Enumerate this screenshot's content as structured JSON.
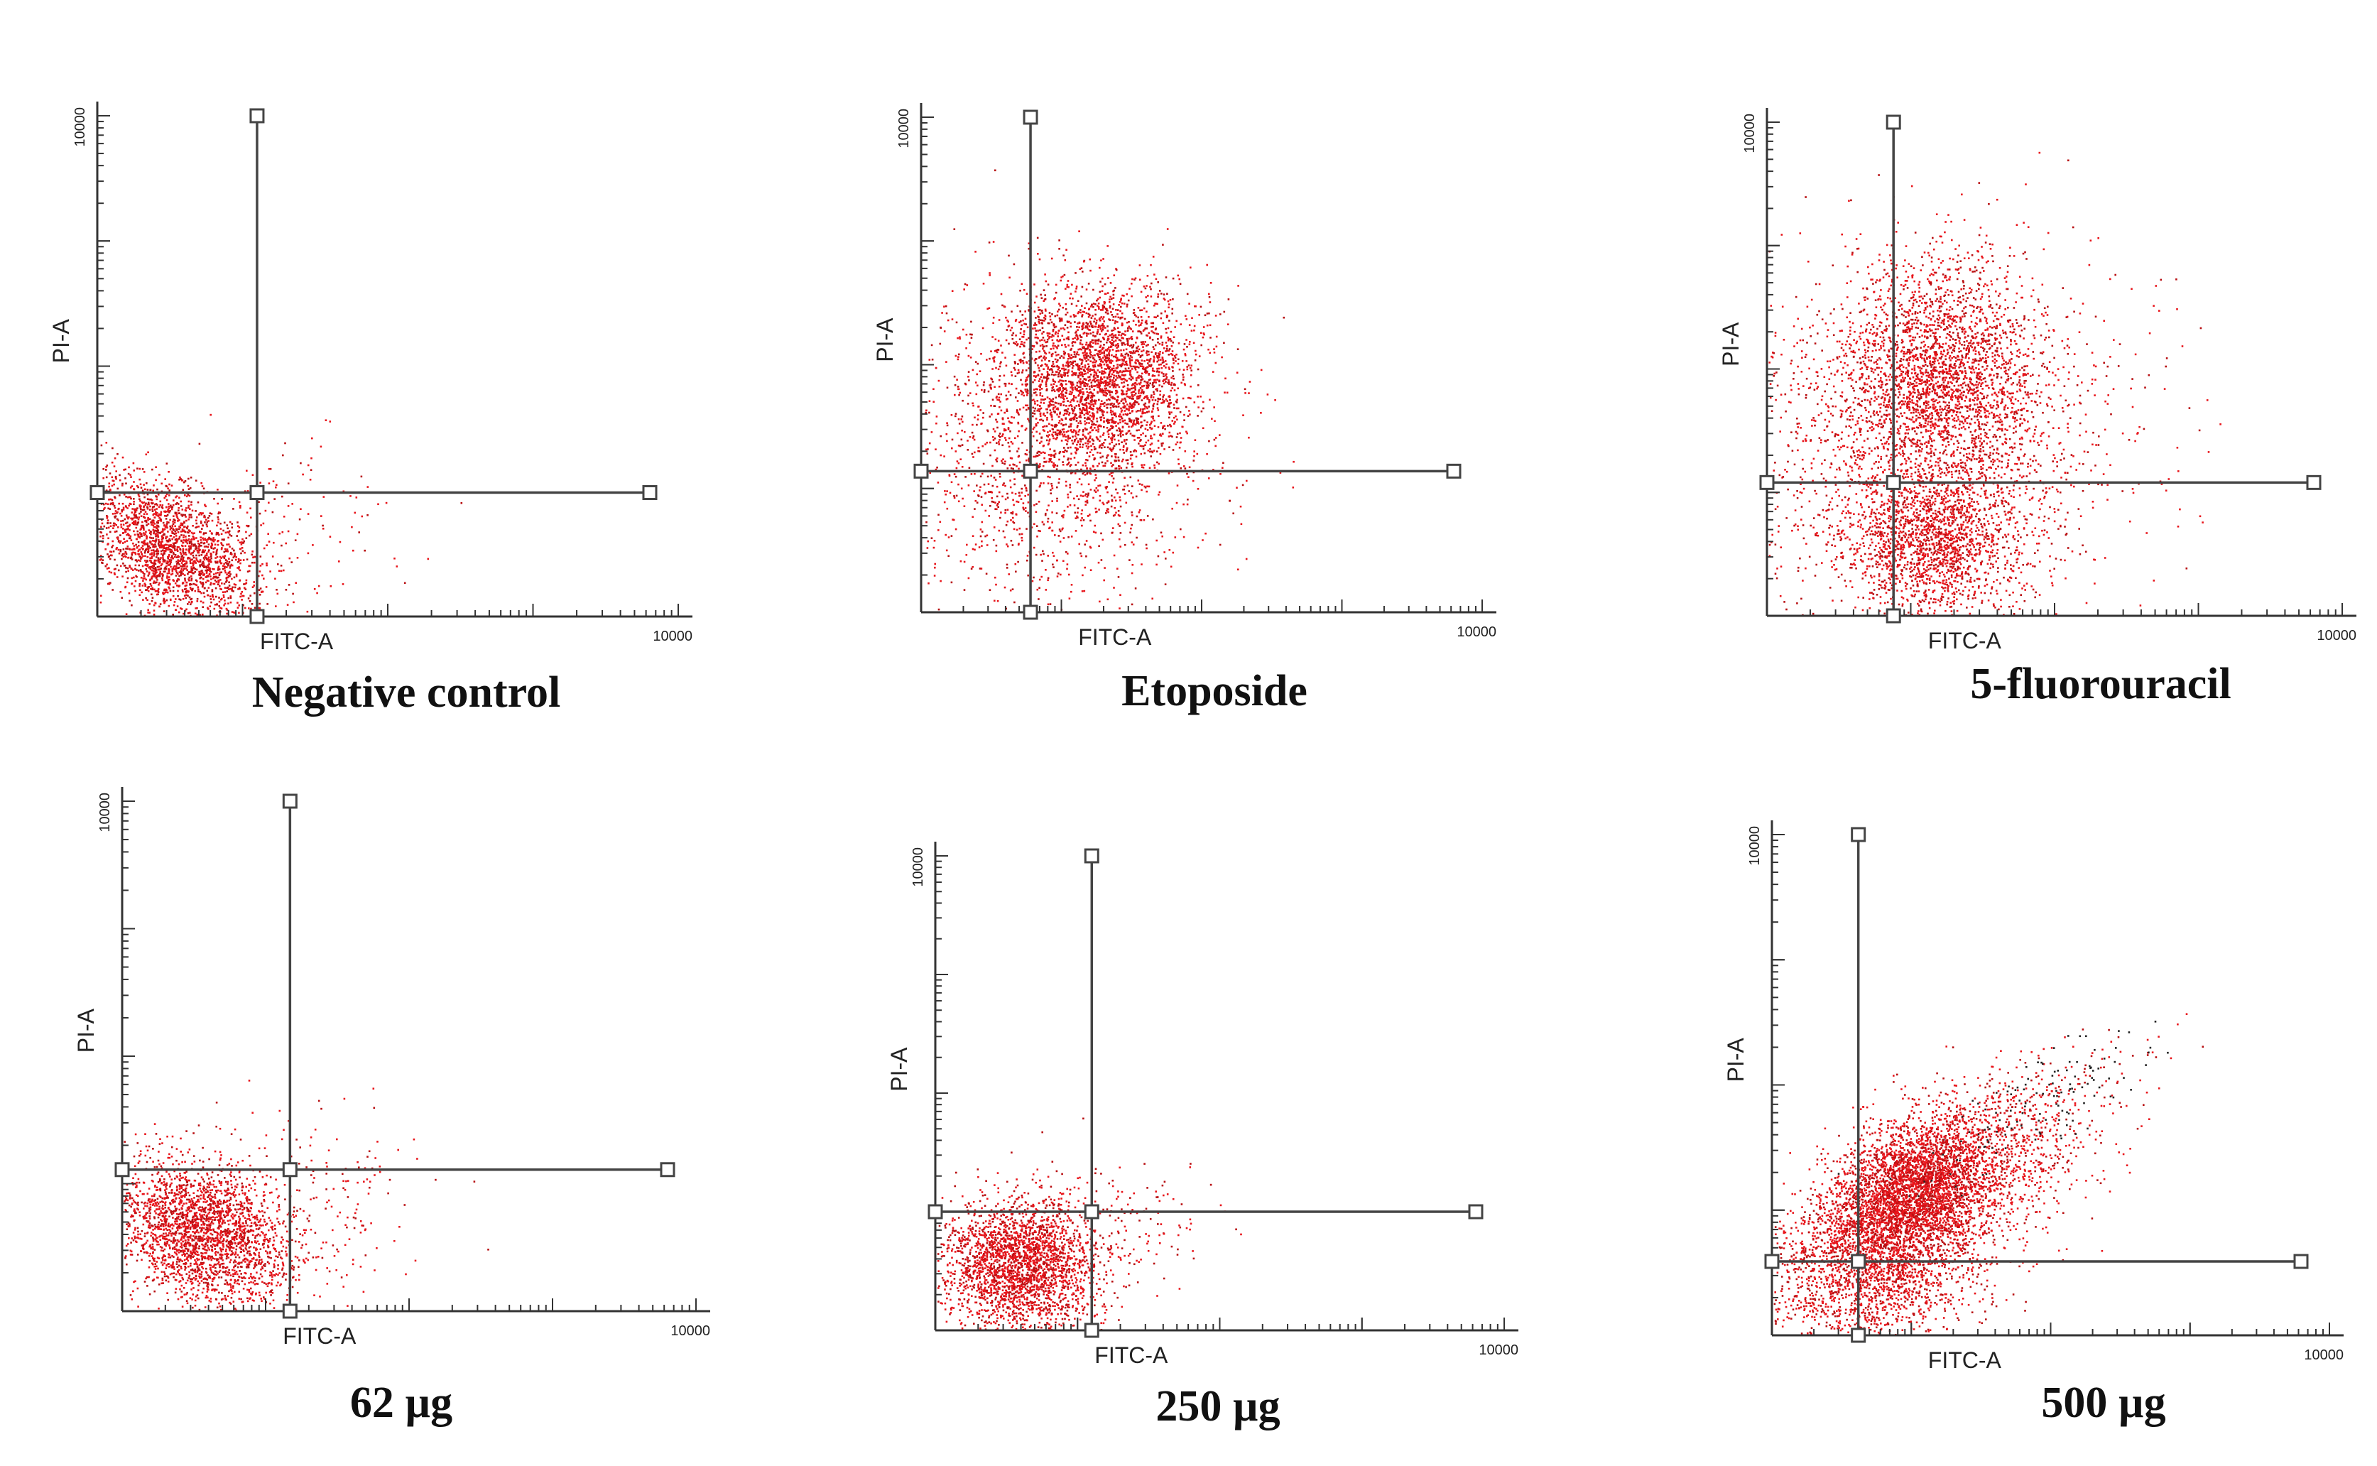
{
  "colors": {
    "event": "#e8151b",
    "event_dense": "#b80f12",
    "axis": "#333333",
    "gate": "#444444",
    "dark_event": "#222222"
  },
  "chart_data": [
    {
      "type": "scatter",
      "title": "",
      "caption": "Negative control",
      "xlabel": "FITC-A",
      "ylabel": "PI-A",
      "x_max_label": "10000",
      "y_max_label": "10000",
      "xlim": [
        0,
        4
      ],
      "ylim": [
        0,
        4
      ],
      "x_scale": "log",
      "y_scale": "log",
      "gate": {
        "x": 1.1,
        "y": 0.99
      },
      "clusters": [
        {
          "cx": 0.5,
          "cy": 0.55,
          "sx": 0.3,
          "sy": 0.28,
          "n": 2200,
          "rho": -0.45
        },
        {
          "cx": 1.3,
          "cy": 0.8,
          "sx": 0.35,
          "sy": 0.35,
          "n": 120,
          "rho": 0
        }
      ]
    },
    {
      "type": "scatter",
      "title": "",
      "caption": "Etoposide",
      "xlabel": "FITC-A",
      "ylabel": "PI-A",
      "x_max_label": "10000",
      "y_max_label": "10000",
      "xlim": [
        0,
        4
      ],
      "ylim": [
        0,
        4
      ],
      "x_scale": "log",
      "y_scale": "log",
      "gate": {
        "x": 0.78,
        "y": 1.14
      },
      "clusters": [
        {
          "cx": 1.28,
          "cy": 1.92,
          "sx": 0.34,
          "sy": 0.36,
          "n": 2600,
          "rho": 0
        },
        {
          "cx": 0.9,
          "cy": 1.3,
          "sx": 0.55,
          "sy": 0.65,
          "n": 1500,
          "rho": 0
        }
      ]
    },
    {
      "type": "scatter",
      "title": "",
      "caption": "5-fluorouracil",
      "xlabel": "FITC-A",
      "ylabel": "PI-A",
      "x_max_label": "10000",
      "y_max_label": "10000",
      "xlim": [
        0,
        4
      ],
      "ylim": [
        0,
        4
      ],
      "x_scale": "log",
      "y_scale": "log",
      "gate": {
        "x": 0.88,
        "y": 1.08
      },
      "clusters": [
        {
          "cx": 1.2,
          "cy": 1.95,
          "sx": 0.35,
          "sy": 0.45,
          "n": 2200,
          "rho": 0
        },
        {
          "cx": 1.15,
          "cy": 0.6,
          "sx": 0.3,
          "sy": 0.3,
          "n": 1600,
          "rho": 0
        },
        {
          "cx": 1.1,
          "cy": 1.4,
          "sx": 0.7,
          "sy": 0.75,
          "n": 2000,
          "rho": 0
        }
      ]
    },
    {
      "type": "scatter",
      "title": "",
      "caption": "62 µg",
      "xlabel": "FITC-A",
      "ylabel": "PI-A",
      "x_max_label": "10000",
      "y_max_label": "10000",
      "xlim": [
        0,
        4
      ],
      "ylim": [
        0,
        4
      ],
      "x_scale": "log",
      "y_scale": "log",
      "gate": {
        "x": 1.17,
        "y": 1.11
      },
      "clusters": [
        {
          "cx": 0.55,
          "cy": 0.62,
          "sx": 0.32,
          "sy": 0.28,
          "n": 2600,
          "rho": -0.3
        },
        {
          "cx": 1.4,
          "cy": 0.9,
          "sx": 0.35,
          "sy": 0.35,
          "n": 150,
          "rho": 0
        }
      ]
    },
    {
      "type": "scatter",
      "title": "",
      "caption": "250 µg",
      "xlabel": "FITC-A",
      "ylabel": "PI-A",
      "x_max_label": "10000",
      "y_max_label": "10000",
      "xlim": [
        0,
        4
      ],
      "ylim": [
        0,
        4
      ],
      "x_scale": "log",
      "y_scale": "log",
      "gate": {
        "x": 1.1,
        "y": 1.0
      },
      "clusters": [
        {
          "cx": 0.6,
          "cy": 0.55,
          "sx": 0.28,
          "sy": 0.28,
          "n": 2600,
          "rho": 0
        },
        {
          "cx": 1.35,
          "cy": 0.85,
          "sx": 0.3,
          "sy": 0.3,
          "n": 130,
          "rho": 0
        }
      ]
    },
    {
      "type": "scatter",
      "title": "",
      "caption": "500 µg",
      "xlabel": "FITC-A",
      "ylabel": "PI-A",
      "x_max_label": "10000",
      "y_max_label": "10000",
      "xlim": [
        0,
        4
      ],
      "ylim": [
        0,
        4
      ],
      "x_scale": "log",
      "y_scale": "log",
      "gate": {
        "x": 0.62,
        "y": 0.59
      },
      "clusters": [
        {
          "cx": 1.0,
          "cy": 1.15,
          "sx": 0.3,
          "sy": 0.28,
          "n": 3200,
          "rho": 0.3
        },
        {
          "cx": 0.7,
          "cy": 0.5,
          "sx": 0.38,
          "sy": 0.3,
          "n": 1800,
          "rho": 0
        },
        {
          "cx": 1.35,
          "cy": 1.3,
          "sx": 0.5,
          "sy": 0.4,
          "n": 1600,
          "rho": 0.5
        },
        {
          "cx": 1.9,
          "cy": 1.85,
          "sx": 0.45,
          "sy": 0.3,
          "n": 220,
          "rho": 0.8,
          "dark": true
        }
      ]
    }
  ]
}
